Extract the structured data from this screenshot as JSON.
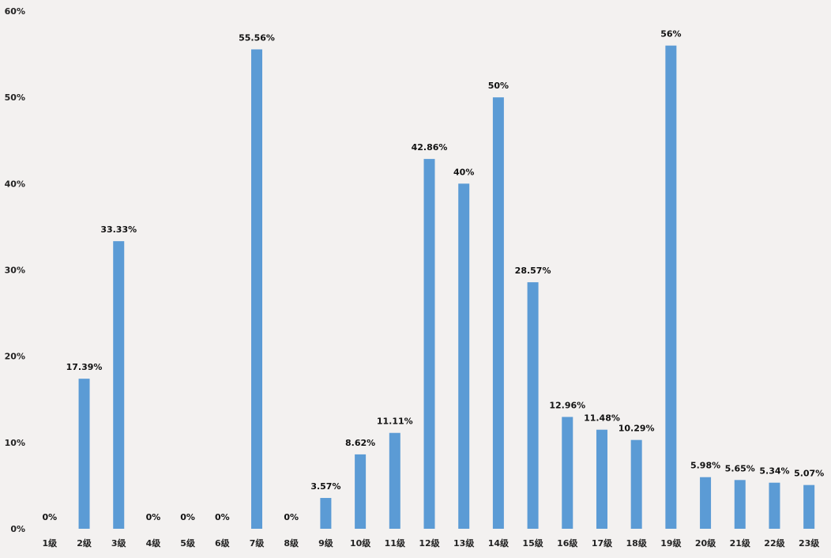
{
  "chart_data": {
    "type": "bar",
    "categories": [
      "1级",
      "2级",
      "3级",
      "4级",
      "5级",
      "6级",
      "7级",
      "8级",
      "9级",
      "10级",
      "11级",
      "12级",
      "13级",
      "14级",
      "15级",
      "16级",
      "17级",
      "18级",
      "19级",
      "20级",
      "21级",
      "22级",
      "23级"
    ],
    "values": [
      0,
      17.39,
      33.33,
      0,
      0,
      0,
      55.56,
      0,
      3.57,
      8.62,
      11.11,
      42.86,
      40,
      50,
      28.57,
      12.96,
      11.48,
      10.29,
      56,
      5.98,
      5.65,
      5.34,
      5.07
    ],
    "data_labels": [
      "0%",
      "17.39%",
      "33.33%",
      "0%",
      "0%",
      "0%",
      "55.56%",
      "0%",
      "3.57%",
      "8.62%",
      "11.11%",
      "42.86%",
      "40%",
      "50%",
      "28.57%",
      "12.96%",
      "11.48%",
      "10.29%",
      "56%",
      "5.98%",
      "5.65%",
      "5.34%",
      "5.07%"
    ],
    "yticks": [
      0,
      10,
      20,
      30,
      40,
      50,
      60
    ],
    "ytick_labels": [
      "0%",
      "10%",
      "20%",
      "30%",
      "40%",
      "50%",
      "60%"
    ],
    "ylim": [
      0,
      60
    ],
    "grid": false,
    "legend": "none",
    "title": "",
    "xlabel": "",
    "ylabel": "",
    "bar_color": "#5b9bd5"
  }
}
